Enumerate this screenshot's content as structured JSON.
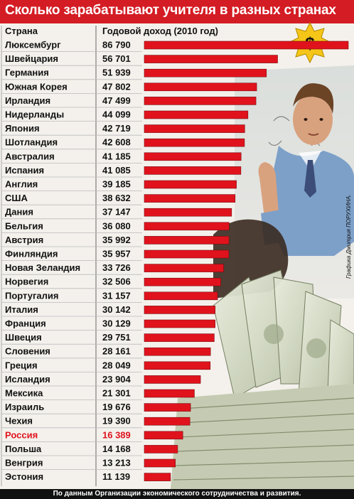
{
  "title": "Сколько зарабатывают учителя в разных странах",
  "header": {
    "country": "Страна",
    "income": "Годовой доход (2010 год)"
  },
  "badge": "$",
  "credit": "Графика Дмитрия ПОРУХИНА.",
  "footer": "По данным Организации экономического сотрудничества и развития.",
  "colors": {
    "bar": "#e0131d",
    "highlight": "#e0131d",
    "title_bg": "#d41c24",
    "badge": "#f5c518"
  },
  "chart_data": {
    "type": "bar",
    "orientation": "horizontal",
    "title": "Сколько зарабатывают учителя в разных странах",
    "categories": [
      "Люксембург",
      "Швейцария",
      "Германия",
      "Южная Корея",
      "Ирландия",
      "Нидерланды",
      "Япония",
      "Шотландия",
      "Австралия",
      "Испания",
      "Англия",
      "США",
      "Дания",
      "Бельгия",
      "Австрия",
      "Финляндия",
      "Новая Зеландия",
      "Норвегия",
      "Португалия",
      "Италия",
      "Франция",
      "Швеция",
      "Словения",
      "Греция",
      "Исландия",
      "Мексика",
      "Израиль",
      "Чехия",
      "Россия",
      "Польша",
      "Венгрия",
      "Эстония"
    ],
    "labels": [
      "86 790",
      "56 701",
      "51 939",
      "47 802",
      "47 499",
      "44 099",
      "42 719",
      "42 608",
      "41 185",
      "41 085",
      "39 185",
      "38 632",
      "37 147",
      "36 080",
      "35 992",
      "35 957",
      "33 726",
      "32 506",
      "31 157",
      "30 142",
      "30 129",
      "29 751",
      "28 161",
      "28 049",
      "23 904",
      "21 301",
      "19 676",
      "19 390",
      "16 389",
      "14 168",
      "13 213",
      "11 139"
    ],
    "values": [
      86790,
      56701,
      51939,
      47802,
      47499,
      44099,
      42719,
      42608,
      41185,
      41085,
      39185,
      38632,
      37147,
      36080,
      35992,
      35957,
      33726,
      32506,
      31157,
      30142,
      30129,
      29751,
      28161,
      28049,
      23904,
      21301,
      19676,
      19390,
      16389,
      14168,
      13213,
      11139
    ],
    "highlight": "Россия",
    "xlabel": "Годовой доход (2010 год)",
    "ylabel": "Страна"
  }
}
